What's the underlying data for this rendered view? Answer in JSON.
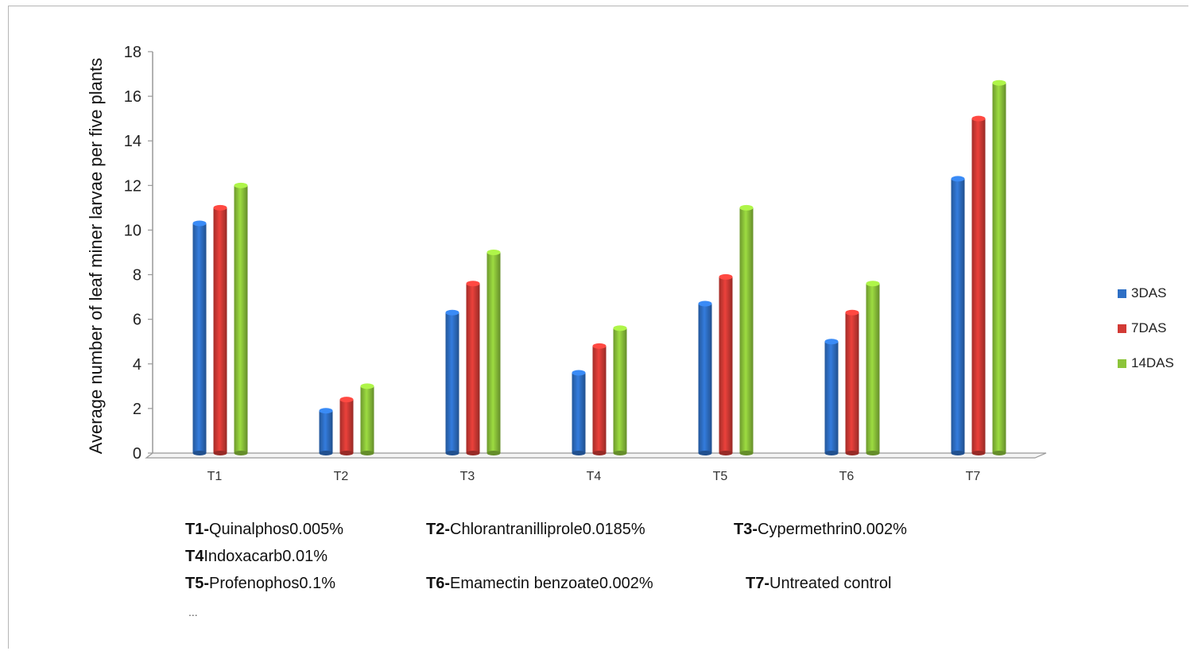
{
  "chart_data": {
    "type": "bar",
    "categories": [
      "T1",
      "T2",
      "T3",
      "T4",
      "T5",
      "T6",
      "T7"
    ],
    "series": [
      {
        "name": "3DAS",
        "color": "#2e6fc5",
        "values": [
          10.3,
          1.9,
          6.3,
          3.6,
          6.7,
          5.0,
          12.3
        ]
      },
      {
        "name": "7DAS",
        "color": "#d23a35",
        "values": [
          11.0,
          2.4,
          7.6,
          4.8,
          7.9,
          6.3,
          15.0
        ]
      },
      {
        "name": "14DAS",
        "color": "#8cc43a",
        "values": [
          12.0,
          3.0,
          9.0,
          5.6,
          11.0,
          7.6,
          16.6
        ]
      }
    ],
    "ylabel": "Average number of leaf miner larvae per five plants",
    "xlabel": "",
    "ylim": [
      0,
      18
    ],
    "yticks": [
      "0",
      "2",
      "4",
      "6",
      "8",
      "10",
      "12",
      "14",
      "16",
      "18"
    ],
    "legend_position": "right",
    "grid": false
  },
  "notes": [
    [
      {
        "code": "T1-",
        "text": "Quinalphos0.005%"
      },
      {
        "code": "T2-",
        "text": "Chlorantranilliprole0.0185%"
      },
      {
        "code": "T3-",
        "text": "Cypermethrin0.002%"
      }
    ],
    [
      {
        "code": "T4",
        "text": "Indoxacarb0.01%"
      }
    ],
    [
      {
        "code": "T5-",
        "text": "Profenophos0.1%"
      },
      {
        "code": "T6-",
        "text": "Emamectin benzoate0.002%"
      },
      {
        "code": "T7-",
        "text": "Untreated control"
      }
    ]
  ],
  "ellipsis": "..."
}
